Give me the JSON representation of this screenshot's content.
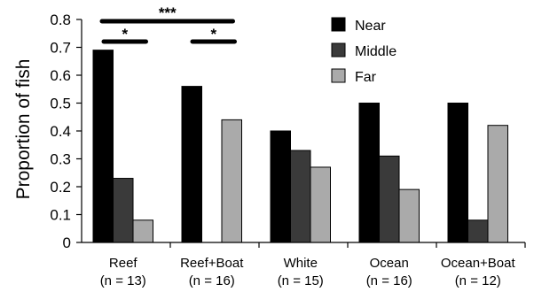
{
  "chart_data": {
    "type": "bar",
    "ylabel": "Proportion of fish",
    "ylim": [
      0,
      0.8
    ],
    "yticks": [
      "0",
      "0.1",
      "0.2",
      "0.3",
      "0.4",
      "0.5",
      "0.6",
      "0.7",
      "0.8"
    ],
    "categories": [
      {
        "name": "Reef",
        "n": "(n = 13)"
      },
      {
        "name": "Reef+Boat",
        "n": "(n = 16)"
      },
      {
        "name": "White",
        "n": "(n = 15)"
      },
      {
        "name": "Ocean",
        "n": "(n = 16)"
      },
      {
        "name": "Ocean+Boat",
        "n": "(n = 12)"
      }
    ],
    "series": [
      {
        "name": "Near",
        "color": "#000000",
        "values": [
          0.69,
          0.56,
          0.4,
          0.5,
          0.5
        ]
      },
      {
        "name": "Middle",
        "color": "#3a3a3a",
        "values": [
          0.23,
          0.0,
          0.33,
          0.31,
          0.08
        ]
      },
      {
        "name": "Far",
        "color": "#aaaaaa",
        "values": [
          0.08,
          0.44,
          0.27,
          0.19,
          0.42
        ]
      }
    ],
    "legend_position": "top-right",
    "significance": [
      {
        "label": "***",
        "from": "Reef",
        "to": "Reef+Boat",
        "level": "upper"
      },
      {
        "label": "*",
        "from": "Reef",
        "to": "Reef",
        "level": "lower"
      },
      {
        "label": "*",
        "from": "Reef+Boat",
        "to": "Reef+Boat",
        "level": "lower"
      }
    ]
  }
}
